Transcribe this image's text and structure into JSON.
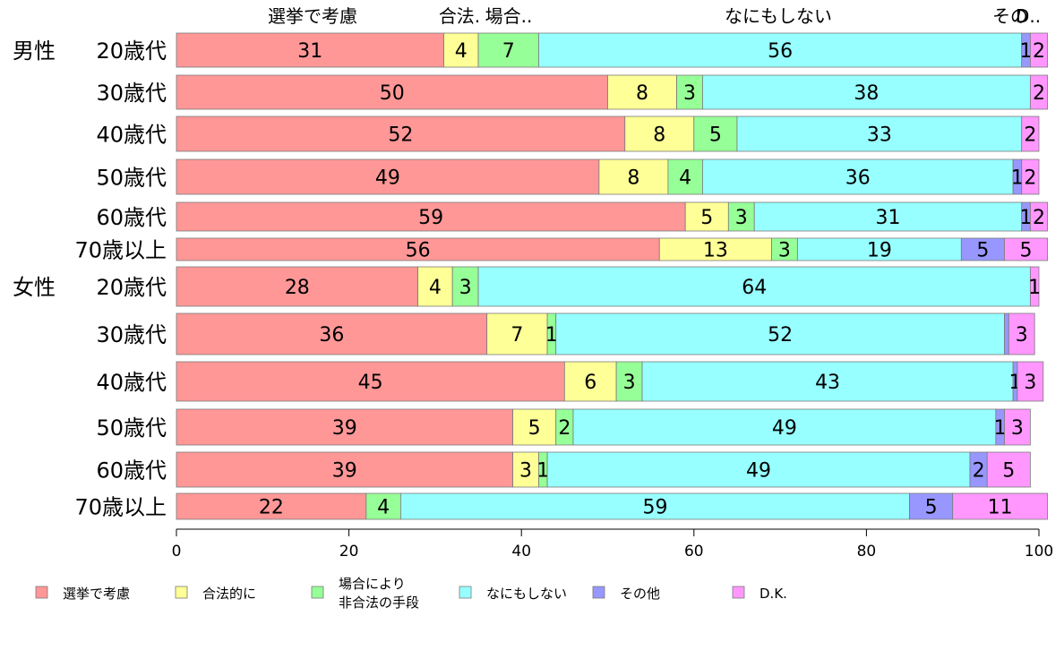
{
  "chart_data": {
    "type": "bar",
    "orientation": "horizontal",
    "stacked": true,
    "xlim": [
      0,
      100
    ],
    "xticks": [
      0,
      20,
      40,
      60,
      80,
      100
    ],
    "grid": false,
    "legend_position": "bottom",
    "top_labels": [
      "選挙で考慮",
      "合法.",
      "場合..",
      "なにもしない",
      "その",
      "D.."
    ],
    "legend": [
      {
        "label": "選挙で考慮",
        "color": "#ff9797"
      },
      {
        "label": "合法的に",
        "color": "#ffff97"
      },
      {
        "label": "場合により\n非合法の手段",
        "color": "#97ff97"
      },
      {
        "label": "なにもしない",
        "color": "#97ffff"
      },
      {
        "label": "その他",
        "color": "#9797ff"
      },
      {
        "label": "D.K.",
        "color": "#ff97ff"
      }
    ],
    "categories": [
      {
        "group": "男性",
        "label": "20歳代"
      },
      {
        "group": "",
        "label": "30歳代"
      },
      {
        "group": "",
        "label": "40歳代"
      },
      {
        "group": "",
        "label": "50歳代"
      },
      {
        "group": "",
        "label": "60歳代"
      },
      {
        "group": "",
        "label": "70歳以上"
      },
      {
        "group": "女性",
        "label": "20歳代"
      },
      {
        "group": "",
        "label": "30歳代"
      },
      {
        "group": "",
        "label": "40歳代"
      },
      {
        "group": "",
        "label": "50歳代"
      },
      {
        "group": "",
        "label": "60歳代"
      },
      {
        "group": "",
        "label": "70歳以上"
      }
    ],
    "series": [
      {
        "name": "選挙で考慮",
        "values": [
          31,
          50,
          52,
          49,
          59,
          56,
          28,
          36,
          45,
          39,
          39,
          22
        ]
      },
      {
        "name": "合法的に",
        "values": [
          4,
          8,
          8,
          8,
          5,
          13,
          4,
          7,
          6,
          5,
          3,
          0
        ]
      },
      {
        "name": "場合により非合法の手段",
        "values": [
          7,
          3,
          5,
          4,
          3,
          3,
          3,
          1,
          3,
          2,
          1,
          4
        ]
      },
      {
        "name": "なにもしない",
        "values": [
          56,
          38,
          33,
          36,
          31,
          19,
          64,
          52,
          43,
          49,
          49,
          59
        ]
      },
      {
        "name": "その他",
        "values": [
          1,
          0,
          0,
          1,
          1,
          5,
          0,
          0.5,
          0.5,
          1,
          2,
          5
        ]
      },
      {
        "name": "D.K.",
        "values": [
          2,
          2,
          2,
          2,
          2,
          5,
          1,
          3,
          3,
          3,
          5,
          11
        ]
      }
    ],
    "data_labels": [
      [
        "31",
        "4",
        "7",
        "56",
        "1",
        "2"
      ],
      [
        "50",
        "8",
        "3",
        "38",
        "",
        "2"
      ],
      [
        "52",
        "8",
        "5",
        "33",
        "",
        "2"
      ],
      [
        "49",
        "8",
        "4",
        "36",
        "1",
        "2"
      ],
      [
        "59",
        "5",
        "3",
        "31",
        "1",
        "2"
      ],
      [
        "56",
        "13",
        "3",
        "19",
        "5",
        "5"
      ],
      [
        "28",
        "4",
        "3",
        "64",
        "",
        "1"
      ],
      [
        "36",
        "7",
        "1",
        "52",
        "",
        "3"
      ],
      [
        "45",
        "6",
        "3",
        "43",
        "1",
        "3"
      ],
      [
        "39",
        "5",
        "2",
        "49",
        "1",
        "3"
      ],
      [
        "39",
        "3",
        "1",
        "49",
        "2",
        "5"
      ],
      [
        "22",
        "",
        "4",
        "59",
        "5",
        "11"
      ]
    ]
  }
}
